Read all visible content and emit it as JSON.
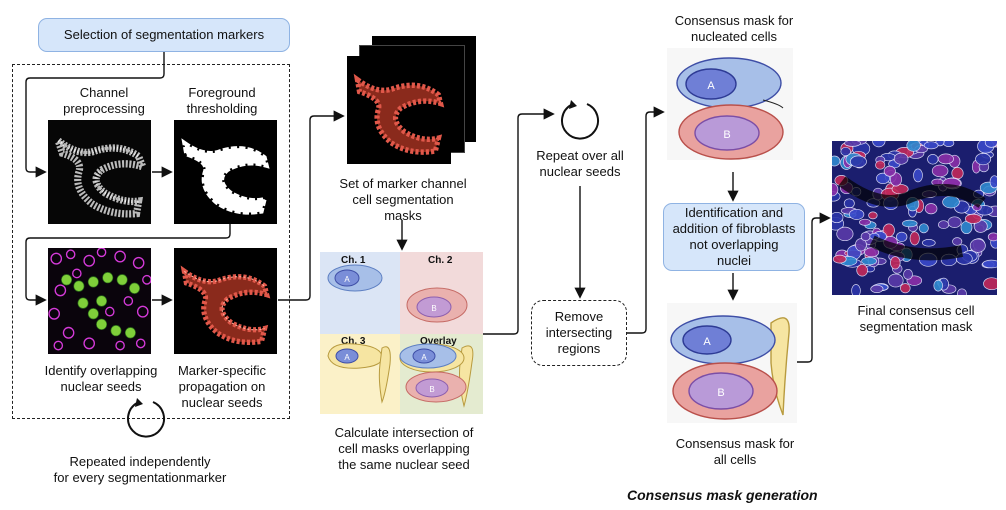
{
  "selection_label": "Selection of segmentation markers",
  "channel_preprocessing": "Channel\npreprocessing",
  "foreground_thresholding": "Foreground\nthresholding",
  "identify_overlapping": "Identify overlapping\nnuclear seeds",
  "marker_specific": "Marker-specific\npropagation on\nnuclear seeds",
  "repeated_independently": "Repeated independently\nfor every segmentationmarker",
  "set_of_masks": "Set of marker channel\ncell segmentation\nmasks",
  "quad_labels": {
    "ch1": "Ch. 1",
    "ch2": "Ch. 2",
    "ch3": "Ch. 3",
    "overlay": "Overlay"
  },
  "calc_intersection": "Calculate intersection of\ncell masks overlapping\nthe same nuclear seed",
  "repeat_over": "Repeat over all\nnuclear seeds",
  "remove_intersecting": "Remove\nintersecting\nregions",
  "consensus_nucleated": "Consensus mask for\nnucleated cells",
  "identification_fibroblasts": "Identification and\naddition of fibroblasts\nnot overlapping\nnuclei",
  "consensus_all": "Consensus mask for\nall cells",
  "final_mask": "Final consensus cell\nsegmentation mask",
  "consensus_generation": "Consensus mask generation",
  "cell_labels": {
    "a": "A",
    "b": "B"
  },
  "colors": {
    "blue_box": "#d6e6fa",
    "blue_border": "#8fb3e3",
    "cell_a": "#8aaee3",
    "cell_b": "#e59b9b",
    "fibroblast": "#f5e39a"
  }
}
